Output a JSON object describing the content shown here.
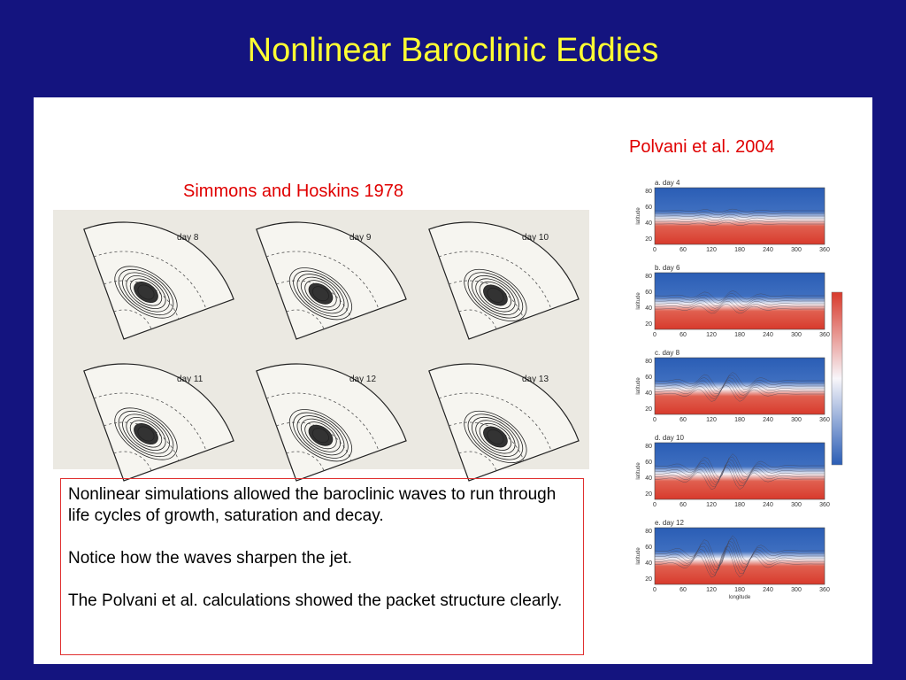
{
  "title": "Nonlinear Baroclinic Eddies",
  "left_figure": {
    "caption": "Simmons and Hoskins 1978",
    "panels": [
      "day 8",
      "day 9",
      "day 10",
      "day 11",
      "day 12",
      "day 13"
    ]
  },
  "right_figure": {
    "caption": "Polvani et al. 2004",
    "panels": [
      "a. day 4",
      "b. day 6",
      "c. day 8",
      "d. day 10",
      "e. day 12"
    ],
    "yticks": [
      "80",
      "60",
      "40",
      "20"
    ],
    "xticks": [
      "0",
      "60",
      "120",
      "180",
      "240",
      "300",
      "360"
    ],
    "ylabel": "latitude",
    "xlabel": "longitude"
  },
  "text_box": {
    "paragraphs": [
      "Nonlinear simulations allowed the baroclinic waves to run through life cycles of growth, saturation and decay.",
      "Notice how the waves sharpen the jet.",
      "The Polvani et al. calculations showed the packet structure clearly."
    ]
  }
}
